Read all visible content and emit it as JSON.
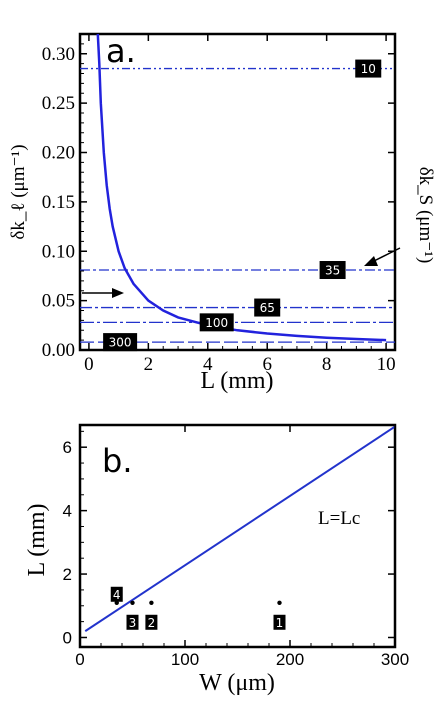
{
  "colors": {
    "curve": "#2222dd",
    "line": "#2233cc",
    "frame": "#000000",
    "tag_bg": "#000000",
    "tag_text": "#ffffff"
  },
  "chart_data": [
    {
      "panel": "a.",
      "type": "line",
      "xlabel": "L (mm)",
      "ylabel": "δk_ℓ (μm⁻¹)",
      "ylabel_right": "δk_S (μm⁻¹)",
      "xlim": [
        -0.3,
        10.3
      ],
      "ylim": [
        0,
        0.32
      ],
      "xticks": [
        0,
        2,
        4,
        6,
        8,
        10
      ],
      "xtick_labels": [
        "0",
        "2",
        "4",
        "6",
        "8",
        "10"
      ],
      "yticks": [
        0,
        0.05,
        0.1,
        0.15,
        0.2,
        0.25,
        0.3
      ],
      "ytick_labels": [
        "0.00",
        "0.05",
        "0.10",
        "0.15",
        "0.20",
        "0.25",
        "0.30"
      ],
      "curve": {
        "x": [
          0.3,
          0.35,
          0.4,
          0.5,
          0.6,
          0.7,
          0.8,
          1.0,
          1.2,
          1.5,
          2.0,
          2.5,
          3.0,
          4.0,
          5.0,
          6.0,
          7.0,
          8.0,
          9.0,
          10.0
        ],
        "y": [
          0.32,
          0.29,
          0.25,
          0.2,
          0.167,
          0.143,
          0.125,
          0.1,
          0.083,
          0.067,
          0.05,
          0.04,
          0.033,
          0.025,
          0.02,
          0.0167,
          0.0143,
          0.0125,
          0.0111,
          0.01
        ]
      },
      "horizontal_lines": [
        {
          "label": "10",
          "y": 0.285,
          "tag_x": 9.4
        },
        {
          "label": "35",
          "y": 0.081,
          "tag_x": 8.2
        },
        {
          "label": "65",
          "y": 0.043,
          "tag_x": 6.0
        },
        {
          "label": "100",
          "y": 0.028,
          "tag_x": 4.3
        },
        {
          "label": "300",
          "y": 0.008,
          "tag_x": 1.05
        }
      ]
    },
    {
      "panel": "b.",
      "type": "scatter",
      "xlabel": "W (μm)",
      "ylabel": "L (mm)",
      "xlim": [
        0,
        300
      ],
      "ylim": [
        -0.3,
        6.7
      ],
      "xticks": [
        0,
        100,
        200,
        300
      ],
      "xtick_labels": [
        "0",
        "100",
        "200",
        "300"
      ],
      "yticks": [
        0,
        2,
        4,
        6
      ],
      "ytick_labels": [
        "0",
        "2",
        "4",
        "6"
      ],
      "line_label": "L=Lc",
      "line": {
        "x": [
          5,
          300
        ],
        "y": [
          0.2,
          6.65
        ]
      },
      "points": [
        {
          "label": "4",
          "x": 35,
          "y": 1.0
        },
        {
          "label": "3",
          "x": 50,
          "y": 1.0
        },
        {
          "label": "2",
          "x": 68,
          "y": 1.0
        },
        {
          "label": "1",
          "x": 190,
          "y": 1.0
        }
      ]
    }
  ]
}
